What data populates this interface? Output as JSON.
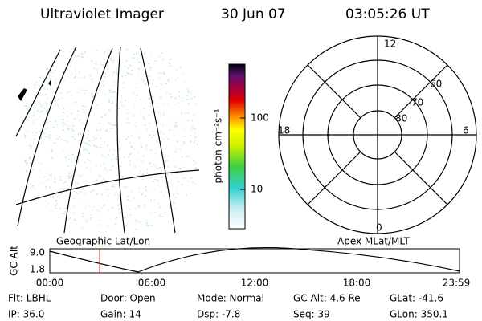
{
  "header": {
    "title": "Ultraviolet Imager",
    "date": "30 Jun 07",
    "time": "03:05:26 UT"
  },
  "image_panel": {
    "label": "Geographic Lat/Lon"
  },
  "colorbar": {
    "axis_label": "photon cm⁻²s⁻¹",
    "ticks": [
      "100",
      "10"
    ]
  },
  "polar_panel": {
    "label": "Apex MLat/MLT",
    "hour_labels": [
      "12",
      "18",
      "6",
      "0"
    ],
    "lat_labels": [
      "60",
      "70",
      "80"
    ]
  },
  "timeline": {
    "y_label": "GC Alt",
    "y_ticks": [
      "9.0",
      "1.8"
    ],
    "x_ticks": [
      "00:00",
      "06:00",
      "12:00",
      "18:00",
      "23:59"
    ]
  },
  "status": {
    "rows": [
      [
        "Flt: LBHL",
        "Door: Open",
        "Mode: Normal",
        "GC Alt: 4.6 Re",
        "GLat: -41.6"
      ],
      [
        "IP: 36.0",
        "Gain: 14",
        "Dsp:   -7.8",
        "Seq: 39",
        "GLon: 350.1"
      ]
    ]
  }
}
